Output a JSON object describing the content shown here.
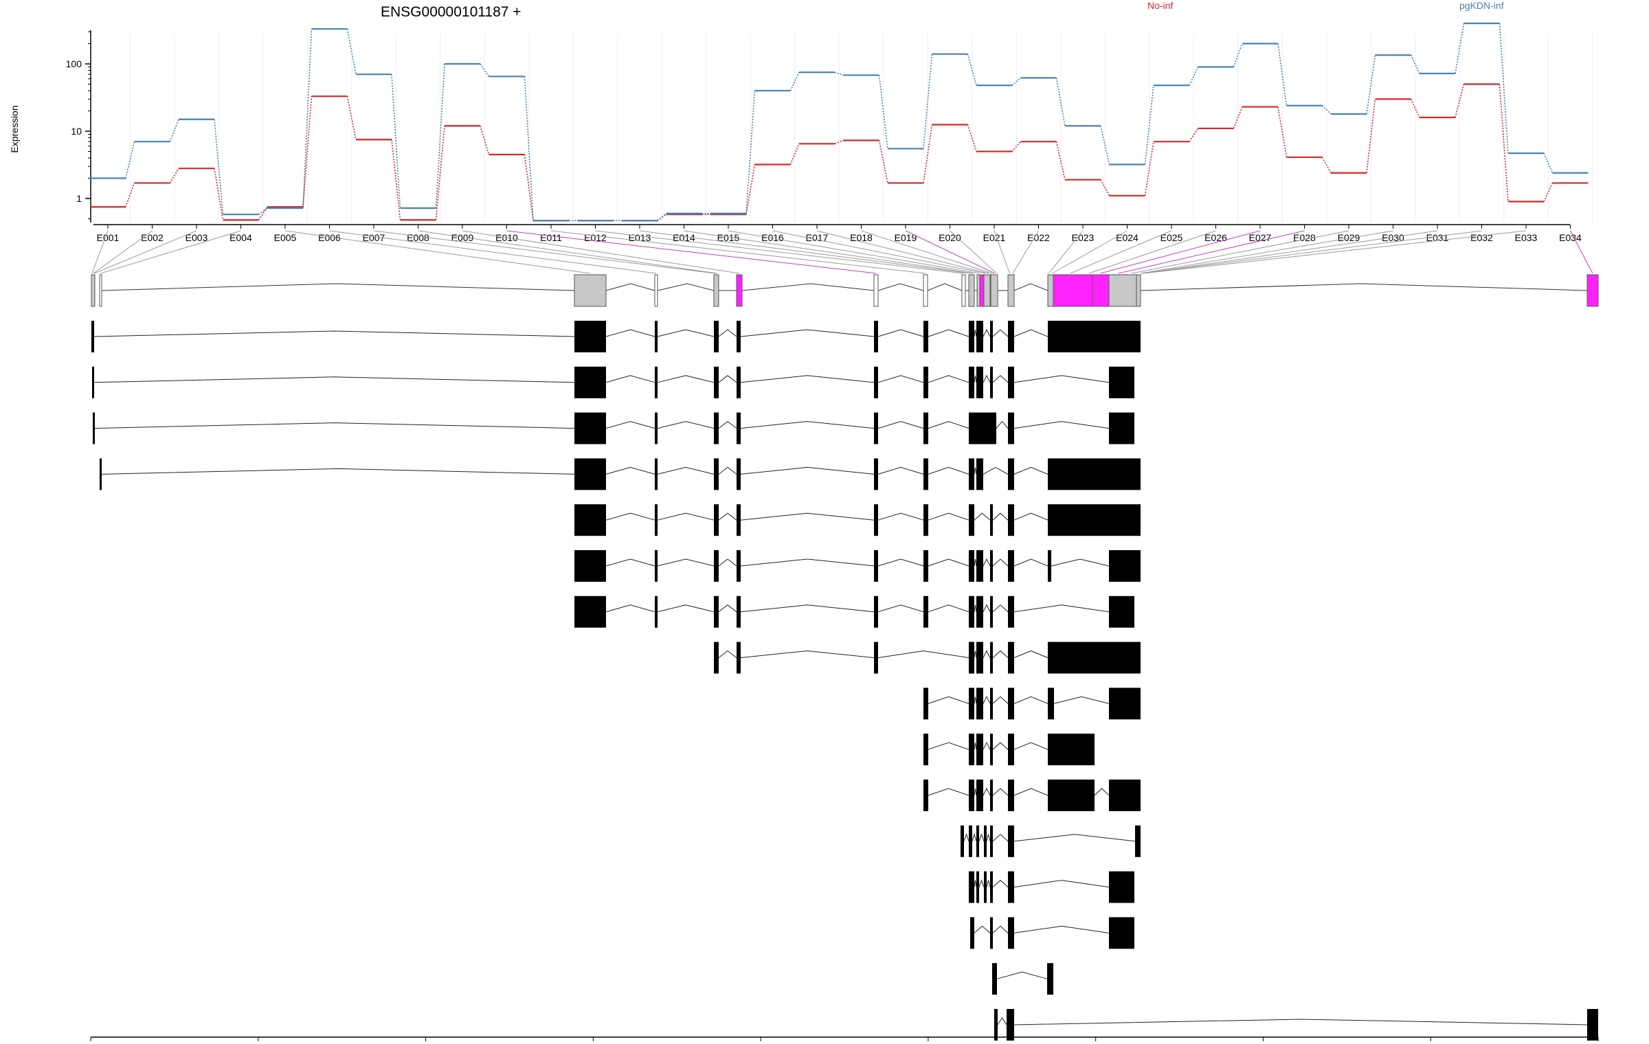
{
  "chart_data": {
    "type": "line",
    "title": "ENSG00000101187 +",
    "ylabel": "Expression",
    "yscale": "log",
    "ylim": [
      0.5,
      500
    ],
    "yticks": [
      "1",
      "10",
      "100"
    ],
    "categories": [
      "E001",
      "E002",
      "E003",
      "E004",
      "E005",
      "E006",
      "E007",
      "E008",
      "E009",
      "E010",
      "E011",
      "E012",
      "E013",
      "E014",
      "E015",
      "E016",
      "E017",
      "E018",
      "E019",
      "E020",
      "E021",
      "E022",
      "E023",
      "E024",
      "E025",
      "E026",
      "E027",
      "E028",
      "E029",
      "E030",
      "E031",
      "E032",
      "E033",
      "E034"
    ],
    "series": [
      {
        "name": "No-inf",
        "color": "#d62728",
        "values": [
          0.75,
          1.7,
          2.8,
          0.48,
          0.75,
          33,
          7.5,
          0.48,
          12,
          4.5,
          0.47,
          0.47,
          0.47,
          0.58,
          0.58,
          3.2,
          6.5,
          7.3,
          1.7,
          12.5,
          5,
          7,
          1.9,
          1.1,
          7,
          11,
          23,
          4.1,
          2.4,
          30,
          16,
          50,
          0.9,
          1.7
        ]
      },
      {
        "name": "pgKDN-inf",
        "color": "#4682b4",
        "values": [
          2,
          7,
          15,
          0.58,
          0.72,
          330,
          70,
          0.72,
          100,
          65,
          0.47,
          0.47,
          0.47,
          0.6,
          0.6,
          40,
          75,
          68,
          5.5,
          140,
          48,
          62,
          12,
          3.2,
          48,
          90,
          200,
          24,
          18,
          135,
          72,
          400,
          4.7,
          2.4
        ]
      }
    ],
    "genome_axis": {
      "ticks": [
        "62642465",
        "62647278",
        "62652092",
        "62656905",
        "62661718",
        "62666532",
        "62671345",
        "62676158",
        "62680972",
        "62685785"
      ]
    }
  }
}
